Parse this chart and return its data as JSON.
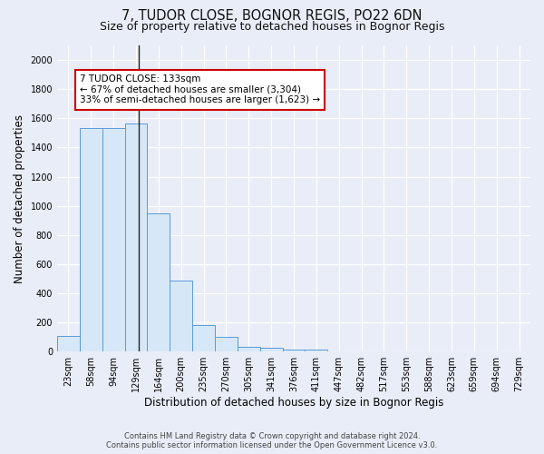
{
  "title_line1": "7, TUDOR CLOSE, BOGNOR REGIS, PO22 6DN",
  "title_line2": "Size of property relative to detached houses in Bognor Regis",
  "xlabel": "Distribution of detached houses by size in Bognor Regis",
  "ylabel": "Number of detached properties",
  "categories": [
    "23sqm",
    "58sqm",
    "94sqm",
    "129sqm",
    "164sqm",
    "200sqm",
    "235sqm",
    "270sqm",
    "305sqm",
    "341sqm",
    "376sqm",
    "411sqm",
    "447sqm",
    "482sqm",
    "517sqm",
    "553sqm",
    "588sqm",
    "623sqm",
    "659sqm",
    "694sqm",
    "729sqm"
  ],
  "values": [
    110,
    1535,
    1535,
    1565,
    950,
    490,
    180,
    100,
    35,
    25,
    15,
    15,
    0,
    0,
    0,
    0,
    0,
    0,
    0,
    0,
    0
  ],
  "bar_color": "#d6e8f7",
  "bar_edge_color": "#5b9bd5",
  "annotation_title": "7 TUDOR CLOSE: 133sqm",
  "annotation_line1": "← 67% of detached houses are smaller (3,304)",
  "annotation_line2": "33% of semi-detached houses are larger (1,623) →",
  "annotation_box_facecolor": "#ffffff",
  "annotation_box_edgecolor": "#cc0000",
  "ylim": [
    0,
    2100
  ],
  "yticks": [
    0,
    200,
    400,
    600,
    800,
    1000,
    1200,
    1400,
    1600,
    1800,
    2000
  ],
  "footer_line1": "Contains HM Land Registry data © Crown copyright and database right 2024.",
  "footer_line2": "Contains public sector information licensed under the Open Government Licence v3.0.",
  "bg_color": "#e8edf8",
  "plot_bg_color": "#e8edf8",
  "vline_color": "#222222",
  "title_fontsize": 10.5,
  "subtitle_fontsize": 9,
  "tick_fontsize": 7,
  "ylabel_fontsize": 8.5,
  "xlabel_fontsize": 8.5,
  "footer_fontsize": 6,
  "annotation_fontsize": 7.5
}
